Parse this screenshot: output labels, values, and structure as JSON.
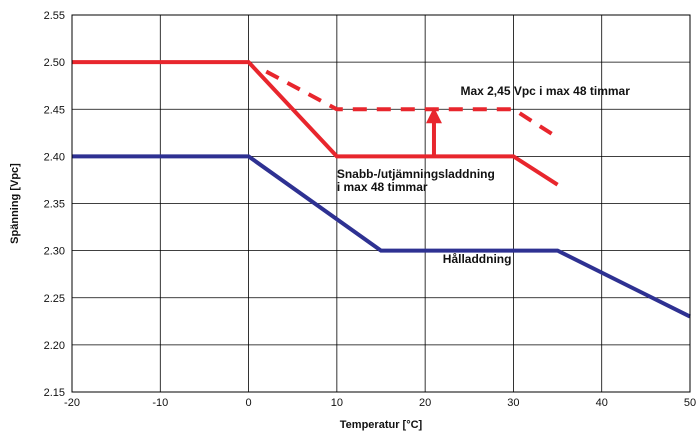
{
  "chart_data": {
    "type": "line",
    "title": "",
    "xlabel": "Temperatur [°C]",
    "ylabel": "Spänning [Vpc]",
    "xlim": [
      -20,
      50
    ],
    "ylim": [
      2.15,
      2.55
    ],
    "x_ticks": [
      -20,
      -10,
      0,
      10,
      20,
      30,
      40,
      50
    ],
    "y_ticks": [
      2.15,
      2.2,
      2.25,
      2.3,
      2.35,
      2.4,
      2.45,
      2.5,
      2.55
    ],
    "x_tick_labels": [
      "-20",
      "-10",
      "0",
      "10",
      "20",
      "30",
      "40",
      "50"
    ],
    "y_tick_labels": [
      "2.15",
      "2.20",
      "2.25",
      "2.30",
      "2.35",
      "2.40",
      "2.45",
      "2.50",
      "2.55"
    ],
    "grid": true,
    "series": [
      {
        "color": "#e8262d",
        "style": "solid",
        "points": [
          [
            -20,
            2.5
          ],
          [
            0,
            2.5
          ],
          [
            10,
            2.4
          ],
          [
            30,
            2.4
          ],
          [
            35,
            2.37
          ]
        ]
      },
      {
        "color": "#e8262d",
        "style": "dashed",
        "points": [
          [
            2,
            2.49
          ],
          [
            10,
            2.45
          ],
          [
            30,
            2.45
          ],
          [
            35,
            2.42
          ]
        ]
      },
      {
        "color": "#2e3192",
        "style": "solid",
        "points": [
          [
            -20,
            2.4
          ],
          [
            0,
            2.4
          ],
          [
            15,
            2.3
          ],
          [
            35,
            2.3
          ],
          [
            50,
            2.23
          ]
        ]
      }
    ],
    "annotations": [
      {
        "text": "Max 2,45 Vpc i max 48 timmar",
        "x": 24,
        "y": 2.465
      },
      {
        "text": "Snabb-/utjämningsladdning",
        "x": 10,
        "y": 2.377
      },
      {
        "text": "i max 48 timmar",
        "x": 10,
        "y": 2.363
      },
      {
        "text": "Hålladdning",
        "x": 22,
        "y": 2.287
      }
    ],
    "arrow": {
      "color": "#e8262d",
      "x": 21,
      "y_from": 2.4,
      "y_to": 2.45
    }
  }
}
